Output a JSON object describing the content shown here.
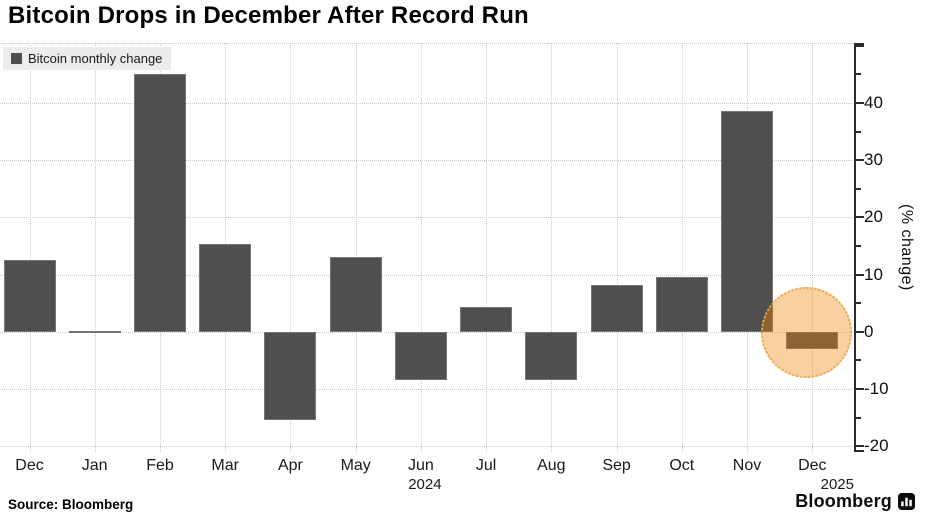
{
  "page": {
    "title": "Bitcoin Drops in December After Record Run"
  },
  "legend": {
    "label": "Bitcoin monthly change"
  },
  "y_axis": {
    "title": "(% change)"
  },
  "footer": {
    "source": "Source: Bloomberg",
    "brand": "Bloomberg"
  },
  "colors": {
    "bar": "#4f4f4f",
    "grid": "#c9c9c9",
    "axis": "#2b2b2b",
    "legend_bg": "#ececec",
    "text": "#1a1a1a",
    "highlight_fill": "rgba(238,134,6,0.38)",
    "highlight_border": "#e8a855"
  },
  "chart_data": {
    "type": "bar",
    "title": "Bitcoin Drops in December After Record Run",
    "categories": [
      "Dec",
      "Jan",
      "Feb",
      "Mar",
      "Apr",
      "May",
      "Jun",
      "Jul",
      "Aug",
      "Sep",
      "Oct",
      "Nov",
      "Dec"
    ],
    "series": [
      {
        "name": "Bitcoin monthly change",
        "values": [
          12.6,
          -0.2,
          45.0,
          15.3,
          -15.4,
          13.0,
          -8.4,
          4.4,
          -8.5,
          8.1,
          9.5,
          38.6,
          -3.1
        ]
      }
    ],
    "x_year_labels": [
      {
        "text": "2024",
        "month_index": 6
      },
      {
        "text": "2025",
        "month_index": 12
      }
    ],
    "xlabel": "",
    "ylabel": "(% change)",
    "ylim": [
      -20,
      50
    ],
    "y_ticks": [
      40,
      30,
      20,
      10,
      0,
      -10,
      -20
    ],
    "minor_tick_step": 5,
    "grid": true,
    "legend_position": "top-left",
    "highlight": {
      "month_index": 12,
      "shape": "circle",
      "note": "December drop highlighted"
    }
  }
}
